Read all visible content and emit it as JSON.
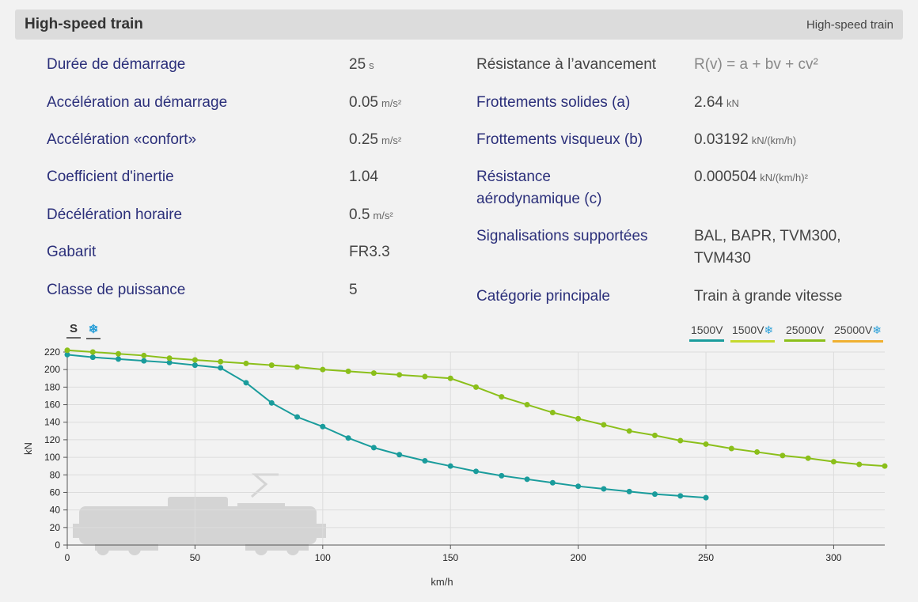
{
  "header": {
    "title": "High-speed train",
    "subtitle": "High-speed train"
  },
  "properties_left": [
    {
      "label": "Durée de démarrage",
      "value": "25",
      "unit": "s"
    },
    {
      "label": "Accélération au démarrage",
      "value": "0.05",
      "unit": "m/s²"
    },
    {
      "label": "Accélération «confort»",
      "value": "0.25",
      "unit": "m/s²"
    },
    {
      "label": "Coefficient d'inertie",
      "value": "1.04",
      "unit": ""
    },
    {
      "label": "Décélération horaire",
      "value": "0.5",
      "unit": "m/s²"
    },
    {
      "label": "Gabarit",
      "value": "FR3.3",
      "unit": ""
    },
    {
      "label": "Classe de puissance",
      "value": "5",
      "unit": ""
    }
  ],
  "properties_right": [
    {
      "label": "Résistance à l’avancement",
      "value": "R(v) = a + bv + cv²",
      "unit": ""
    },
    {
      "label": "Frottements solides (a)",
      "value": "2.64",
      "unit": "kN"
    },
    {
      "label": "Frottements visqueux (b)",
      "value": "0.03192",
      "unit": "kN/(km/h)"
    },
    {
      "label_line1": "Résistance",
      "label_line2": "aérodynamique (c)",
      "value": "0.000504",
      "unit": "kN/(km/h)²"
    },
    {
      "label": "Signalisations supportées",
      "value_line1": "BAL, BAPR, TVM300,",
      "value_line2": "TVM430"
    },
    {
      "label": "Catégorie principale",
      "value": "Train à grande vitesse",
      "unit": ""
    }
  ],
  "mode_buttons": {
    "s": "S",
    "snow": "❄"
  },
  "legend": [
    {
      "label": "1500V",
      "flake": "",
      "color": "#1a9c9c"
    },
    {
      "label": "1500V",
      "flake": "❄",
      "color": "#c5d92d"
    },
    {
      "label": "25000V",
      "flake": "",
      "color": "#8bbf1a"
    },
    {
      "label": "25000V",
      "flake": "❄",
      "color": "#f0b030"
    }
  ],
  "chart_data": {
    "type": "line",
    "xlabel": "km/h",
    "ylabel": "kN",
    "xlim": [
      0,
      320
    ],
    "ylim": [
      0,
      220
    ],
    "xticks": [
      0,
      50,
      100,
      150,
      200,
      250,
      300
    ],
    "yticks": [
      0,
      20,
      40,
      60,
      80,
      100,
      120,
      140,
      160,
      180,
      200,
      220
    ],
    "grid": true,
    "series": [
      {
        "name": "1500V",
        "color": "#1a9c9c",
        "x": [
          0,
          10,
          20,
          30,
          40,
          50,
          60,
          70,
          80,
          90,
          100,
          110,
          120,
          130,
          140,
          150,
          160,
          170,
          180,
          190,
          200,
          210,
          220,
          230,
          240,
          250
        ],
        "y": [
          217,
          214,
          212,
          210,
          208,
          205,
          202,
          185,
          162,
          146,
          135,
          122,
          111,
          103,
          96,
          90,
          84,
          79,
          75,
          71,
          67,
          64,
          61,
          58,
          56,
          54
        ]
      },
      {
        "name": "25000V",
        "color": "#8bbf1a",
        "x": [
          0,
          10,
          20,
          30,
          40,
          50,
          60,
          70,
          80,
          90,
          100,
          110,
          120,
          130,
          140,
          150,
          160,
          170,
          180,
          190,
          200,
          210,
          220,
          230,
          240,
          250,
          260,
          270,
          280,
          290,
          300,
          310,
          320
        ],
        "y": [
          222,
          220,
          218,
          216,
          213,
          211,
          209,
          207,
          205,
          203,
          200,
          198,
          196,
          194,
          192,
          190,
          180,
          169,
          160,
          151,
          144,
          137,
          130,
          125,
          119,
          115,
          110,
          106,
          102,
          99,
          95,
          92,
          90
        ]
      }
    ]
  }
}
